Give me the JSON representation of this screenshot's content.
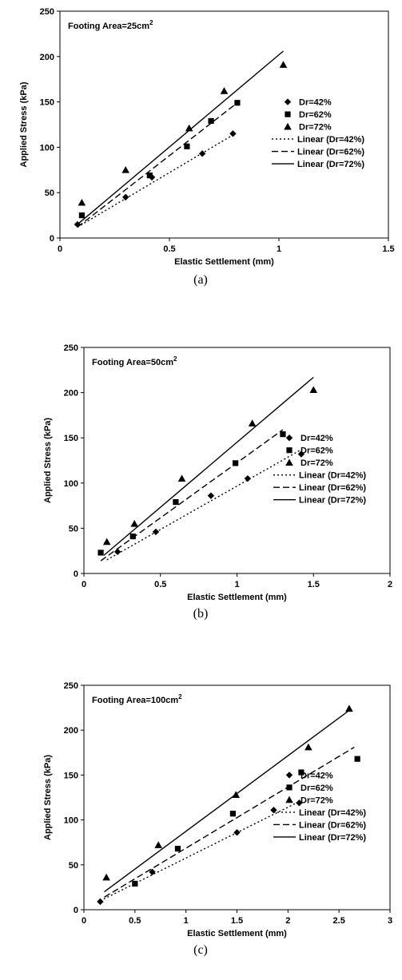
{
  "chart_data": [
    {
      "type": "scatter",
      "caption": "(a)",
      "annotation": "Footing Area=25cm",
      "annotation_sup": "2",
      "xlabel": "Elastic Settlement (mm)",
      "ylabel": "Applied Stress (kPa)",
      "xlim": [
        0,
        1.5
      ],
      "ylim": [
        0,
        250
      ],
      "xticks": [
        0,
        0.5,
        1,
        1.5
      ],
      "xtick_labels": [
        "0",
        "0.5",
        "1",
        "1.5"
      ],
      "yticks": [
        0,
        50,
        100,
        150,
        200,
        250
      ],
      "ytick_labels": [
        "0",
        "50",
        "100",
        "150",
        "200",
        "250"
      ],
      "grid": false,
      "legend_position": "right",
      "series": [
        {
          "name": "Dr=42%",
          "marker": "diamond",
          "x": [
            0.08,
            0.3,
            0.42,
            0.65,
            0.79
          ],
          "y": [
            15,
            45,
            67,
            93,
            115
          ]
        },
        {
          "name": "Dr=62%",
          "marker": "square",
          "x": [
            0.1,
            0.41,
            0.58,
            0.69,
            0.81
          ],
          "y": [
            25,
            69,
            101,
            129,
            149
          ]
        },
        {
          "name": "Dr=72%",
          "marker": "triangle",
          "x": [
            0.1,
            0.3,
            0.59,
            0.75,
            1.02
          ],
          "y": [
            39,
            75,
            121,
            162,
            191
          ]
        }
      ],
      "trendlines": [
        {
          "name": "Linear (Dr=42%)",
          "style": "dotted",
          "x": [
            0.08,
            0.8
          ],
          "y": [
            12,
            115
          ]
        },
        {
          "name": "Linear (Dr=62%)",
          "style": "dashed",
          "x": [
            0.08,
            0.81
          ],
          "y": [
            12,
            149
          ]
        },
        {
          "name": "Linear (Dr=72%)",
          "style": "solid",
          "x": [
            0.08,
            1.02
          ],
          "y": [
            15,
            206
          ]
        }
      ]
    },
    {
      "type": "scatter",
      "caption": "(b)",
      "annotation": "Footing Area=50cm",
      "annotation_sup": "2",
      "xlabel": "Elastic Settlement (mm)",
      "ylabel": "Applied Stress (kPa)",
      "xlim": [
        0,
        2
      ],
      "ylim": [
        0,
        250
      ],
      "xticks": [
        0,
        0.5,
        1,
        1.5,
        2
      ],
      "xtick_labels": [
        "0",
        "0.5",
        "1",
        "1.5",
        "2"
      ],
      "yticks": [
        0,
        50,
        100,
        150,
        200,
        250
      ],
      "ytick_labels": [
        "0",
        "50",
        "100",
        "150",
        "200",
        "250"
      ],
      "grid": false,
      "legend_position": "right",
      "series": [
        {
          "name": "Dr=42%",
          "marker": "diamond",
          "x": [
            0.22,
            0.47,
            0.83,
            1.07,
            1.42
          ],
          "y": [
            24,
            46,
            86,
            105,
            132
          ]
        },
        {
          "name": "Dr=62%",
          "marker": "square",
          "x": [
            0.11,
            0.32,
            0.6,
            0.99,
            1.3
          ],
          "y": [
            23,
            41,
            79,
            122,
            154
          ]
        },
        {
          "name": "Dr=72%",
          "marker": "triangle",
          "x": [
            0.15,
            0.33,
            0.64,
            1.1,
            1.5
          ],
          "y": [
            35,
            55,
            105,
            166,
            203
          ]
        }
      ],
      "trendlines": [
        {
          "name": "Linear (Dr=42%)",
          "style": "dotted",
          "x": [
            0.15,
            1.42
          ],
          "y": [
            15,
            137
          ]
        },
        {
          "name": "Linear (Dr=62%)",
          "style": "dashed",
          "x": [
            0.11,
            1.3
          ],
          "y": [
            14,
            159
          ]
        },
        {
          "name": "Linear (Dr=72%)",
          "style": "solid",
          "x": [
            0.13,
            1.5
          ],
          "y": [
            20,
            217
          ]
        }
      ]
    },
    {
      "type": "scatter",
      "caption": "(c)",
      "annotation": "Footing Area=100cm",
      "annotation_sup": "2",
      "xlabel": "Elastic Settlement (mm)",
      "ylabel": "Applied Stress (kPa)",
      "xlim": [
        0,
        3
      ],
      "ylim": [
        0,
        250
      ],
      "xticks": [
        0,
        0.5,
        1,
        1.5,
        2,
        2.5,
        3
      ],
      "xtick_labels": [
        "0",
        "0.5",
        "1",
        "1.5",
        "2",
        "2.5",
        "3"
      ],
      "yticks": [
        0,
        50,
        100,
        150,
        200,
        250
      ],
      "ytick_labels": [
        "0",
        "50",
        "100",
        "150",
        "200",
        "250"
      ],
      "grid": false,
      "legend_position": "right",
      "series": [
        {
          "name": "Dr=42%",
          "marker": "diamond",
          "x": [
            0.16,
            0.67,
            1.5,
            1.86,
            2.11
          ],
          "y": [
            9,
            42,
            86,
            111,
            119
          ]
        },
        {
          "name": "Dr=62%",
          "marker": "square",
          "x": [
            0.5,
            0.92,
            1.46,
            2.13,
            2.68
          ],
          "y": [
            29,
            68,
            107,
            153,
            168
          ]
        },
        {
          "name": "Dr=72%",
          "marker": "triangle",
          "x": [
            0.22,
            0.73,
            1.49,
            2.2,
            2.6
          ],
          "y": [
            36,
            72,
            128,
            181,
            224
          ]
        }
      ],
      "trendlines": [
        {
          "name": "Linear (Dr=42%)",
          "style": "dotted",
          "x": [
            0.16,
            2.12
          ],
          "y": [
            10,
            121
          ]
        },
        {
          "name": "Linear (Dr=62%)",
          "style": "dashed",
          "x": [
            0.2,
            2.65
          ],
          "y": [
            14,
            181
          ]
        },
        {
          "name": "Linear (Dr=72%)",
          "style": "solid",
          "x": [
            0.2,
            2.6
          ],
          "y": [
            20,
            222
          ]
        }
      ]
    }
  ]
}
